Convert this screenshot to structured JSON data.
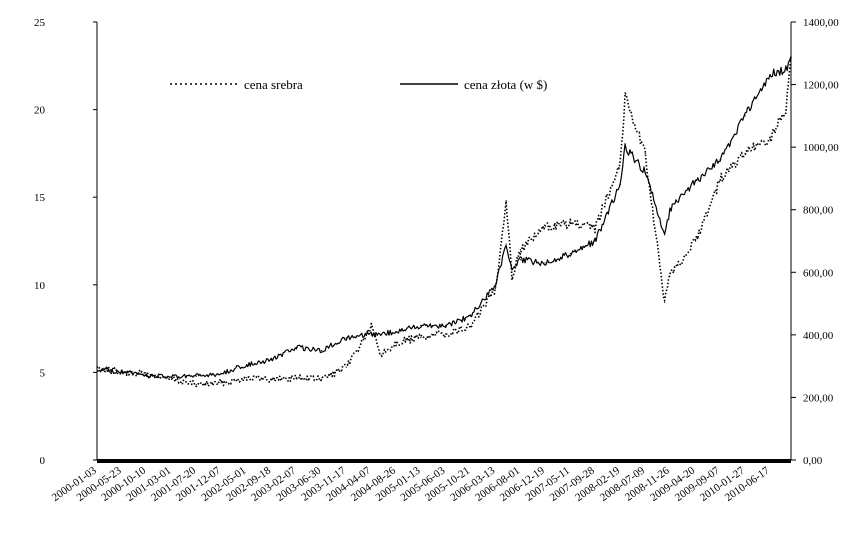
{
  "chart_data": {
    "type": "line",
    "title": "",
    "xlabel": "",
    "ylabel": "",
    "y_left": {
      "ylim": [
        0,
        25
      ],
      "ticks": [
        "0",
        "5",
        "10",
        "15",
        "20",
        "25"
      ]
    },
    "y_right": {
      "ylim": [
        0,
        1400
      ],
      "ticks": [
        "0,00",
        "200,00",
        "400,00",
        "600,00",
        "800,00",
        "1000,00",
        "1200,00",
        "1400,00"
      ]
    },
    "x_tick_labels": [
      "2000-01-03",
      "2000-05-23",
      "2000-10-10",
      "2001-03-01",
      "2001-07-20",
      "2001-12-07",
      "2002-05-01",
      "2002-09-18",
      "2003-02-07",
      "2003-06-30",
      "2003-11-17",
      "2004-04-07",
      "2004-08-26",
      "2005-01-13",
      "2005-06-03",
      "2005-10-21",
      "2006-03-13",
      "2006-08-01",
      "2006-12-19",
      "2007-05-11",
      "2007-09-28",
      "2008-02-19",
      "2008-07-09",
      "2008-11-26",
      "2009-04-20",
      "2009-09-07",
      "2010-01-27",
      "2010-06-17"
    ],
    "grid": false,
    "legend": "top-center",
    "series": [
      {
        "name": "cena srebra",
        "axis": "left",
        "style": "dotted",
        "x": [
          "2000-01-03",
          "2000-05-23",
          "2000-10-10",
          "2001-03-01",
          "2001-07-20",
          "2001-12-07",
          "2002-05-01",
          "2002-09-18",
          "2003-02-07",
          "2003-06-30",
          "2003-11-17",
          "2004-04-07",
          "2004-06-01",
          "2004-08-26",
          "2005-01-13",
          "2005-06-03",
          "2005-10-21",
          "2006-03-13",
          "2006-05-12",
          "2006-06-14",
          "2006-08-01",
          "2006-12-19",
          "2007-05-11",
          "2007-09-28",
          "2008-02-19",
          "2008-03-17",
          "2008-07-09",
          "2008-10-27",
          "2008-11-26",
          "2009-04-20",
          "2009-09-07",
          "2010-01-27",
          "2010-06-17",
          "2010-09-15",
          "2010-10-14"
        ],
        "values": [
          5.3,
          5.0,
          4.9,
          4.6,
          4.3,
          4.4,
          4.7,
          4.6,
          4.7,
          4.6,
          5.3,
          7.6,
          6.0,
          6.7,
          7.0,
          7.2,
          7.6,
          9.8,
          14.8,
          10.5,
          12.0,
          13.3,
          13.5,
          13.2,
          17.0,
          20.8,
          17.5,
          9.0,
          10.5,
          12.5,
          16.0,
          17.5,
          18.3,
          20.0,
          23.0
        ]
      },
      {
        "name": "cena złota (w $)",
        "axis": "right",
        "style": "solid",
        "x": [
          "2000-01-03",
          "2000-05-23",
          "2000-10-10",
          "2001-03-01",
          "2001-07-20",
          "2001-12-07",
          "2002-05-01",
          "2002-09-18",
          "2003-02-07",
          "2003-06-30",
          "2003-11-17",
          "2004-04-07",
          "2004-08-26",
          "2005-01-13",
          "2005-06-03",
          "2005-10-21",
          "2006-03-13",
          "2006-05-12",
          "2006-06-14",
          "2006-08-01",
          "2006-12-19",
          "2007-05-11",
          "2007-09-28",
          "2008-02-19",
          "2008-03-17",
          "2008-07-09",
          "2008-10-27",
          "2008-11-26",
          "2009-04-20",
          "2009-09-07",
          "2010-01-27",
          "2010-06-17",
          "2010-09-15",
          "2010-10-14"
        ],
        "values": [
          290,
          280,
          270,
          265,
          268,
          275,
          305,
          320,
          360,
          350,
          390,
          400,
          410,
          430,
          430,
          460,
          560,
          690,
          600,
          640,
          630,
          660,
          700,
          880,
          1000,
          920,
          720,
          800,
          890,
          960,
          1100,
          1230,
          1250,
          1290
        ]
      }
    ]
  }
}
